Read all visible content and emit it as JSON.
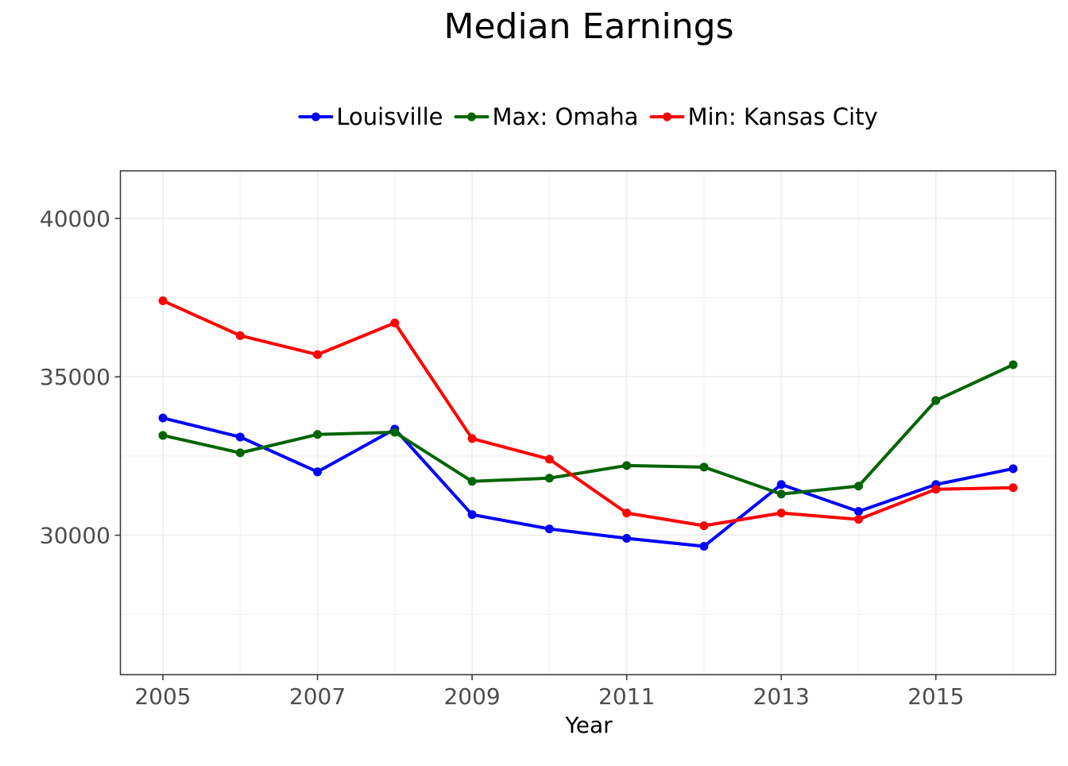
{
  "chart_data": {
    "type": "line",
    "title": "Median Earnings",
    "xlabel": "Year",
    "ylabel": "",
    "x": [
      2005,
      2006,
      2007,
      2008,
      2009,
      2010,
      2011,
      2012,
      2013,
      2014,
      2015,
      2016
    ],
    "xlim": [
      2004.45,
      2016.55
    ],
    "ylim": [
      25600,
      41500
    ],
    "x_ticks": [
      2005,
      2007,
      2009,
      2011,
      2013,
      2015
    ],
    "y_ticks": [
      30000,
      35000,
      40000
    ],
    "x_tick_labels": [
      "2005",
      "2007",
      "2009",
      "2011",
      "2013",
      "2015"
    ],
    "y_tick_labels": [
      "30000",
      "35000",
      "40000"
    ],
    "grid": true,
    "legend_position": "top",
    "series": [
      {
        "name": "Louisville",
        "color": "#0000ff",
        "values": [
          33700,
          33100,
          32000,
          33350,
          30650,
          30200,
          29900,
          29650,
          31600,
          30750,
          31600,
          32100
        ]
      },
      {
        "name": "Max: Omaha",
        "color": "#006400",
        "values": [
          33150,
          32600,
          33180,
          33250,
          31700,
          31800,
          32200,
          32150,
          31300,
          31550,
          34250,
          35380
        ]
      },
      {
        "name": "Min: Kansas City",
        "color": "#ff0000",
        "values": [
          37400,
          36300,
          35700,
          36700,
          33050,
          32400,
          30700,
          30300,
          30700,
          30500,
          31450,
          31500
        ]
      }
    ]
  }
}
